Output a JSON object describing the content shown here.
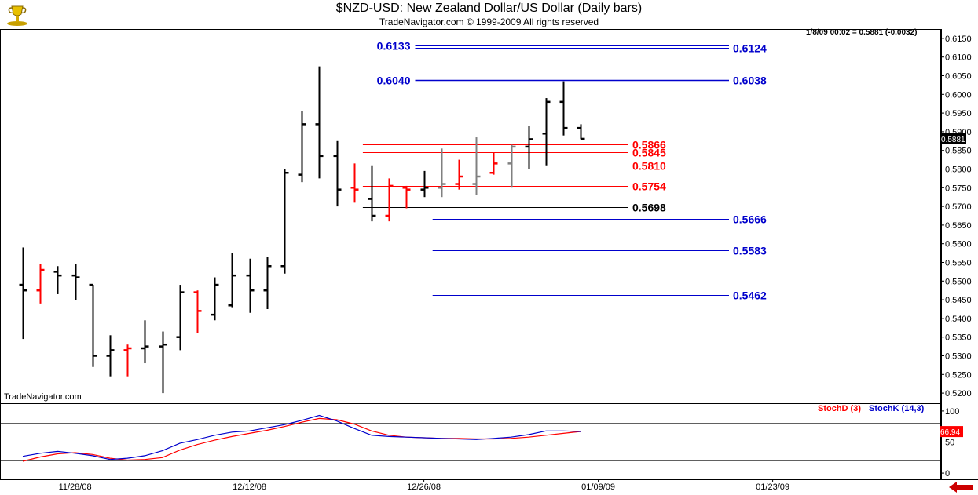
{
  "header": {
    "title": "$NZD-USD:  New Zealand Dollar/US Dollar  (Daily bars)",
    "subtitle": "TradeNavigator.com © 1999-2009 All rights reserved",
    "quote": "1/8/09 00:02 = 0.5881 (-0.0032)",
    "brand": "TradeNavigator.com",
    "logo_icon": "trophy-logo-icon"
  },
  "colors": {
    "bar_black": "#000000",
    "bar_red": "#ff0000",
    "bar_gray": "#808080",
    "level_blue": "#0000cc",
    "level_red": "#ff0000",
    "stoch_d": "#ff0000",
    "stoch_k": "#0000cc",
    "nav_arrow": "#cc0000"
  },
  "chart_data": [
    {
      "type": "ohlc",
      "title": "$NZD-USD:  New Zealand Dollar/US Dollar  (Daily bars)",
      "ylim": [
        0.5175,
        0.6175
      ],
      "y_ticks": [
        "0.6150",
        "0.6100",
        "0.6050",
        "0.6000",
        "0.5950",
        "0.5900",
        "0.5850",
        "0.5800",
        "0.5750",
        "0.5700",
        "0.5650",
        "0.5600",
        "0.5550",
        "0.5500",
        "0.5450",
        "0.5400",
        "0.5350",
        "0.5300",
        "0.5250",
        "0.5200"
      ],
      "x_ticks": [
        "11/28/08",
        "12/12/08",
        "12/26/08",
        "01/09/09",
        "01/23/09"
      ],
      "last_price_tag": "0.5881",
      "bars": [
        {
          "o": 0.549,
          "h": 0.559,
          "l": 0.5345,
          "c": 0.5475,
          "color": "black"
        },
        {
          "o": 0.5475,
          "h": 0.5545,
          "l": 0.544,
          "c": 0.553,
          "color": "red"
        },
        {
          "o": 0.5525,
          "h": 0.554,
          "l": 0.5465,
          "c": 0.5515,
          "color": "black"
        },
        {
          "o": 0.5515,
          "h": 0.5545,
          "l": 0.545,
          "c": 0.551,
          "color": "black"
        },
        {
          "o": 0.549,
          "h": 0.549,
          "l": 0.527,
          "c": 0.53,
          "color": "black"
        },
        {
          "o": 0.53,
          "h": 0.5355,
          "l": 0.5245,
          "c": 0.5315,
          "color": "black"
        },
        {
          "o": 0.5315,
          "h": 0.533,
          "l": 0.5245,
          "c": 0.532,
          "color": "red"
        },
        {
          "o": 0.532,
          "h": 0.5395,
          "l": 0.528,
          "c": 0.5325,
          "color": "black"
        },
        {
          "o": 0.5325,
          "h": 0.5365,
          "l": 0.52,
          "c": 0.533,
          "color": "black"
        },
        {
          "o": 0.535,
          "h": 0.549,
          "l": 0.5315,
          "c": 0.547,
          "color": "black"
        },
        {
          "o": 0.547,
          "h": 0.5475,
          "l": 0.536,
          "c": 0.542,
          "color": "red"
        },
        {
          "o": 0.541,
          "h": 0.551,
          "l": 0.5395,
          "c": 0.549,
          "color": "black"
        },
        {
          "o": 0.5435,
          "h": 0.5575,
          "l": 0.543,
          "c": 0.5515,
          "color": "black"
        },
        {
          "o": 0.5515,
          "h": 0.556,
          "l": 0.5415,
          "c": 0.5475,
          "color": "black"
        },
        {
          "o": 0.5475,
          "h": 0.5565,
          "l": 0.5425,
          "c": 0.554,
          "color": "black"
        },
        {
          "o": 0.554,
          "h": 0.58,
          "l": 0.552,
          "c": 0.579,
          "color": "black"
        },
        {
          "o": 0.5785,
          "h": 0.5955,
          "l": 0.5765,
          "c": 0.592,
          "color": "black"
        },
        {
          "o": 0.592,
          "h": 0.6075,
          "l": 0.5775,
          "c": 0.5835,
          "color": "black"
        },
        {
          "o": 0.5835,
          "h": 0.5875,
          "l": 0.57,
          "c": 0.5745,
          "color": "black"
        },
        {
          "o": 0.575,
          "h": 0.5815,
          "l": 0.571,
          "c": 0.5745,
          "color": "red"
        },
        {
          "o": 0.572,
          "h": 0.581,
          "l": 0.566,
          "c": 0.5675,
          "color": "black"
        },
        {
          "o": 0.5675,
          "h": 0.5775,
          "l": 0.566,
          "c": 0.5755,
          "color": "red"
        },
        {
          "o": 0.575,
          "h": 0.5755,
          "l": 0.5695,
          "c": 0.5745,
          "color": "red"
        },
        {
          "o": 0.5745,
          "h": 0.5795,
          "l": 0.5725,
          "c": 0.575,
          "color": "black"
        },
        {
          "o": 0.575,
          "h": 0.5855,
          "l": 0.5725,
          "c": 0.576,
          "color": "gray"
        },
        {
          "o": 0.576,
          "h": 0.5825,
          "l": 0.5745,
          "c": 0.578,
          "color": "red"
        },
        {
          "o": 0.576,
          "h": 0.5885,
          "l": 0.573,
          "c": 0.578,
          "color": "gray"
        },
        {
          "o": 0.579,
          "h": 0.5845,
          "l": 0.5785,
          "c": 0.5815,
          "color": "red"
        },
        {
          "o": 0.5815,
          "h": 0.5865,
          "l": 0.575,
          "c": 0.586,
          "color": "gray"
        },
        {
          "o": 0.586,
          "h": 0.5915,
          "l": 0.58,
          "c": 0.588,
          "color": "black"
        },
        {
          "o": 0.5895,
          "h": 0.599,
          "l": 0.581,
          "c": 0.598,
          "color": "black"
        },
        {
          "o": 0.598,
          "h": 0.6035,
          "l": 0.589,
          "c": 0.591,
          "color": "black"
        },
        {
          "o": 0.591,
          "h": 0.592,
          "l": 0.588,
          "c": 0.5881,
          "color": "black"
        }
      ],
      "levels": [
        {
          "value": 0.61315,
          "left_label": "0.6133",
          "right_label": "",
          "color": "blue",
          "x_start_bar": 22.5,
          "x_end": "right"
        },
        {
          "value": 0.61255,
          "left_label": "",
          "right_label": "0.6124",
          "color": "blue",
          "x_start_bar": 22.5,
          "x_end": "right"
        },
        {
          "value": 0.6039,
          "left_label": "0.6040",
          "right_label": "0.6038",
          "color": "blue",
          "x_start_bar": 22.5,
          "x_end": "right"
        },
        {
          "value": 0.5866,
          "left_label": "",
          "right_label": "0.5866",
          "color": "red",
          "x_start_bar": 19.5,
          "x_end": "mid"
        },
        {
          "value": 0.5845,
          "left_label": "",
          "right_label": "0.5845",
          "color": "red",
          "x_start_bar": 19.5,
          "x_end": "mid"
        },
        {
          "value": 0.581,
          "left_label": "",
          "right_label": "0.5810",
          "color": "red",
          "x_start_bar": 19.5,
          "x_end": "mid"
        },
        {
          "value": 0.5754,
          "left_label": "",
          "right_label": "0.5754",
          "color": "red",
          "x_start_bar": 19.5,
          "x_end": "mid"
        },
        {
          "value": 0.5698,
          "left_label": "",
          "right_label": "0.5698",
          "color": "black",
          "x_start_bar": 19.5,
          "x_end": "mid"
        },
        {
          "value": 0.5666,
          "left_label": "",
          "right_label": "0.5666",
          "color": "blue",
          "x_start_bar": 23.5,
          "x_end": "right"
        },
        {
          "value": 0.5583,
          "left_label": "",
          "right_label": "0.5583",
          "color": "blue",
          "x_start_bar": 23.5,
          "x_end": "right"
        },
        {
          "value": 0.5462,
          "left_label": "",
          "right_label": "0.5462",
          "color": "blue",
          "x_start_bar": 23.5,
          "x_end": "right"
        }
      ]
    },
    {
      "type": "line",
      "ylim": [
        -10,
        110
      ],
      "y_ticks": [
        "100",
        "50",
        "0"
      ],
      "ref_lines": [
        80,
        20
      ],
      "last_value_tag": "66.94",
      "series": [
        {
          "name": "StochD (3)",
          "color": "red",
          "values": [
            19,
            26,
            31,
            33,
            30,
            24,
            21,
            22,
            25,
            37,
            46,
            53,
            59,
            64,
            69,
            75,
            82,
            88,
            86,
            79,
            68,
            61,
            58,
            57,
            56,
            56,
            55,
            55,
            56,
            58,
            61,
            64,
            67
          ]
        },
        {
          "name": "StochK (14,3)",
          "color": "blue",
          "values": [
            27,
            32,
            35,
            32,
            28,
            22,
            24,
            28,
            36,
            48,
            54,
            61,
            66,
            68,
            73,
            78,
            85,
            93,
            84,
            72,
            61,
            59,
            58,
            57,
            56,
            55,
            54,
            56,
            58,
            62,
            68,
            68,
            67
          ]
        }
      ],
      "legend_position": "top-right"
    }
  ]
}
